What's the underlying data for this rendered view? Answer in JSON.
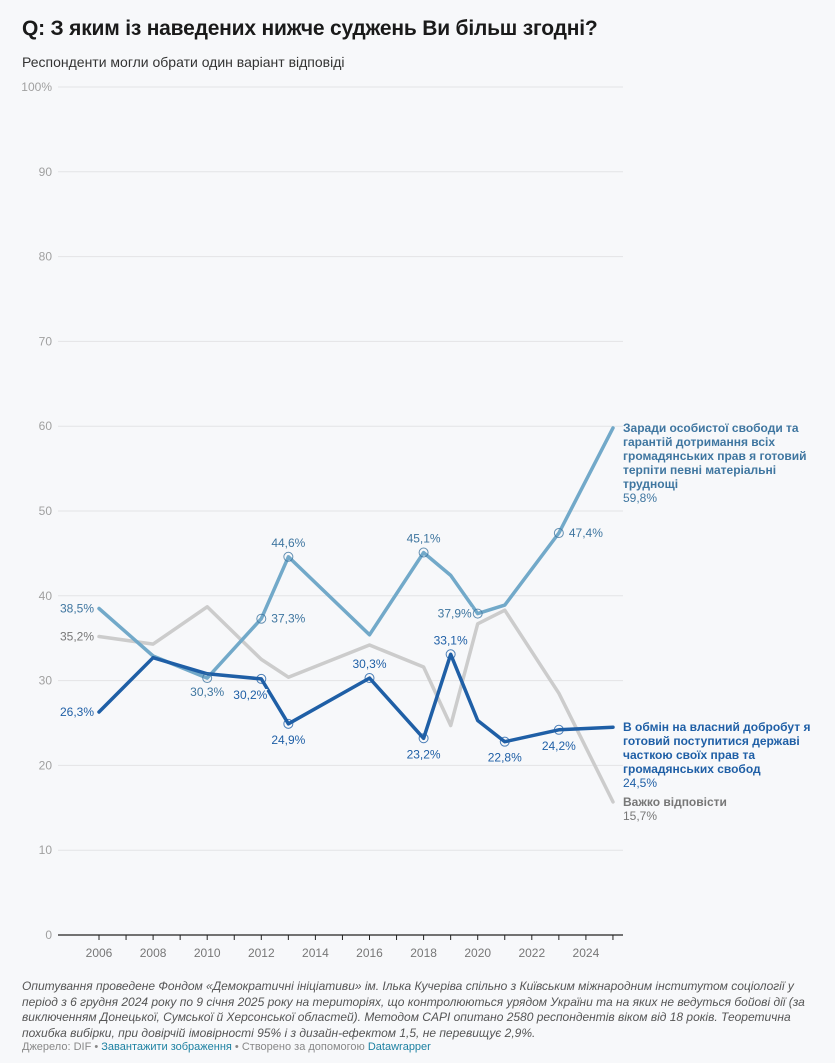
{
  "header": {
    "title": "Q: З яким із наведених нижче суджень Ви більш згодні?",
    "subtitle": "Респонденти могли обрати один варіант відповіді"
  },
  "chart_data": {
    "type": "line",
    "title": "Q: З яким із наведених нижче суджень Ви більш згодні?",
    "subtitle": "Респонденти могли обрати один варіант відповіді",
    "xlabel": "",
    "ylabel": "",
    "ylim": [
      0,
      100
    ],
    "xlim": [
      2004.5,
      2025.4
    ],
    "grid": true,
    "y_ticks": [
      "0",
      "10",
      "20",
      "30",
      "40",
      "50",
      "60",
      "70",
      "80",
      "90",
      "100%"
    ],
    "y_tick_values": [
      0,
      10,
      20,
      30,
      40,
      50,
      60,
      70,
      80,
      90,
      100
    ],
    "x_ticks": [
      "2006",
      "2008",
      "2010",
      "2012",
      "2014",
      "2016",
      "2018",
      "2020",
      "2022",
      "2024"
    ],
    "x_tick_values": [
      2006,
      2008,
      2010,
      2012,
      2014,
      2016,
      2018,
      2020,
      2022,
      2024
    ],
    "x": [
      2006,
      2008,
      2010,
      2012,
      2013,
      2016,
      2018,
      2019,
      2020,
      2021,
      2023,
      2025
    ],
    "legend_placement": "inline-right",
    "series": [
      {
        "name": "Заради особистої свободи та гарантій дотримання всіх громадянських прав я готовий терпіти певні матеріальні труднощі",
        "color": "#72a9c9",
        "label_color": "#3f76a0",
        "values": [
          38.5,
          32.9,
          30.3,
          37.3,
          44.6,
          35.4,
          45.1,
          42.4,
          37.9,
          38.9,
          47.4,
          59.8
        ],
        "end_label": "59,8%",
        "point_labels": [
          {
            "x": 2006,
            "text": "38,5%",
            "marker": false
          },
          {
            "x": 2010,
            "text": "30,3%",
            "marker": true
          },
          {
            "x": 2012,
            "text": "37,3%",
            "marker": true
          },
          {
            "x": 2013,
            "text": "44,6%",
            "marker": true
          },
          {
            "x": 2018,
            "text": "45,1%",
            "marker": true
          },
          {
            "x": 2020,
            "text": "37,9%",
            "marker": true
          },
          {
            "x": 2023,
            "text": "47,4%",
            "marker": true
          }
        ]
      },
      {
        "name": "В обмін на власний добробут я готовий поступитися державі часткою своїх прав та громадянських свобод",
        "color": "#1f5fa6",
        "label_color": "#1f5fa6",
        "values": [
          26.3,
          32.7,
          30.8,
          30.2,
          24.9,
          30.3,
          23.2,
          33.1,
          25.3,
          22.8,
          24.2,
          24.5
        ],
        "end_label": "24,5%",
        "point_labels": [
          {
            "x": 2006,
            "text": "26,3%",
            "marker": false
          },
          {
            "x": 2012,
            "text": "30,2%",
            "marker": true
          },
          {
            "x": 2013,
            "text": "24,9%",
            "marker": true
          },
          {
            "x": 2016,
            "text": "30,3%",
            "marker": true
          },
          {
            "x": 2018,
            "text": "23,2%",
            "marker": true
          },
          {
            "x": 2019,
            "text": "33,1%",
            "marker": true
          },
          {
            "x": 2021,
            "text": "22,8%",
            "marker": true
          },
          {
            "x": 2023,
            "text": "24,2%",
            "marker": true
          }
        ]
      },
      {
        "name": "Важко відповісти",
        "color": "#cccccc",
        "label_color": "#777777",
        "values": [
          35.2,
          34.3,
          38.7,
          32.5,
          30.4,
          34.2,
          31.6,
          24.7,
          36.7,
          38.3,
          28.5,
          15.7
        ],
        "end_label": "15,7%",
        "point_labels": [
          {
            "x": 2006,
            "text": "35,2%",
            "marker": false
          }
        ]
      }
    ]
  },
  "notes": "Опитування проведене Фондом «Демократичні ініціативи» ім. Ілька Кучеріва спільно з Київським міжнародним інститутом соціології у період з 6 грудня 2024 року по 9 січня 2025 року на територіях, що контролюються урядом України та на яких не ведуться бойові дії (за виключенням Донецької, Сумської й Херсонської областей). Методом CAPI опитано 2580 респондентів віком від 18 років. Теоретична похибка вибірки, при довірчій імовірності 95% і з дизайн-ефектом 1,5, не перевищує 2,9%.",
  "footer": {
    "source_label": "Джерело: DIF",
    "separator": " • ",
    "download_link": "Завантажити зображення",
    "created_with": "Створено за допомогою",
    "datawrapper_link": "Datawrapper"
  }
}
